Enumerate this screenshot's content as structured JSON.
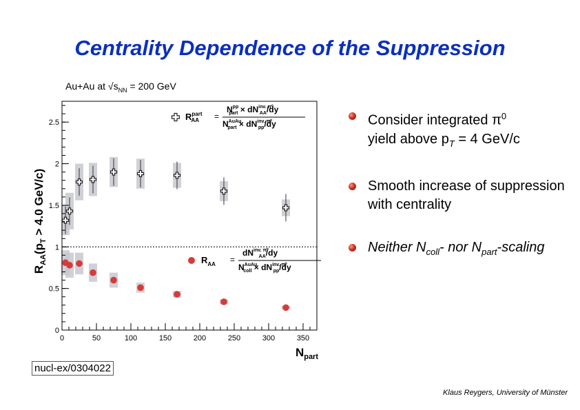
{
  "slide": {
    "title": "Centrality Dependence of the Suppression",
    "subtitle_prefix": "Au+Au at √s",
    "subtitle_sub": "NN",
    "subtitle_suffix": " = 200 GeV",
    "reference": "nucl-ex/0304022",
    "author": "Klaus Reygers, University of Münster",
    "bullets": [
      {
        "parts": [
          "Consider integrated π",
          "0",
          "yield above p",
          "T",
          " = 4 GeV/c"
        ]
      },
      {
        "parts": [
          "Smooth increase of suppression with centrality"
        ]
      },
      {
        "parts": [
          "Neither N",
          "coll",
          "- nor N",
          "part",
          "-scaling"
        ]
      }
    ],
    "colors": {
      "title": "#0a2fbe",
      "ncoll_markers": "#d83a3a",
      "npart_markers": "#ffffff",
      "syst_band": "#c8c8d0",
      "bullet": "#c82818"
    }
  },
  "chart_data": {
    "type": "scatter",
    "xlabel": "N",
    "xlabel_sub": "part",
    "ylabel": "R",
    "ylabel_sub": "AA",
    "ylabel_paren": "(p",
    "ylabel_paren_sub": "T",
    "ylabel_rest": " > 4.0 GeV/c)",
    "xlim": [
      0,
      370
    ],
    "ylim": [
      0,
      2.75
    ],
    "x_ticks": [
      0,
      50,
      100,
      150,
      200,
      250,
      300,
      350
    ],
    "y_ticks": [
      0,
      0.5,
      1,
      1.5,
      2,
      2.5
    ],
    "reference_line": 1,
    "series": [
      {
        "marker": "open-cross",
        "formula": {
          "lhs": "R",
          "lhs_sup": "part",
          "lhs_sub": "AA",
          "num": "N",
          "num_sup": "pp",
          "num_sub": "part",
          "num_mid": " × dN",
          "num_mid_sup": "inv. π⁰",
          "num_mid_sub": "AA",
          "num_end": "/dy",
          "den": "N",
          "den_sup": "AuAu",
          "den_sub": "part",
          "den_mid": " × dN",
          "den_mid_sup": "inv. π⁰",
          "den_mid_sub": "pp",
          "den_end": "/dy"
        },
        "x": [
          5,
          11,
          25,
          45,
          75,
          114,
          167,
          235,
          325
        ],
        "y": [
          1.32,
          1.43,
          1.78,
          1.81,
          1.9,
          1.88,
          1.86,
          1.67,
          1.47
        ],
        "syst": [
          0.18,
          0.22,
          0.22,
          0.2,
          0.18,
          0.18,
          0.15,
          0.12,
          0.1
        ]
      },
      {
        "marker": "filled-circle",
        "formula": {
          "lhs": "R",
          "lhs_sub": "AA",
          "num": "dN",
          "num_sup": "inv. π⁰",
          "num_sub": "AA",
          "num_end": "/dy",
          "den": "N",
          "den_sup": "AuAu",
          "den_sub": "coll",
          "den_mid": " × dN",
          "den_mid_sup": "inv. π⁰",
          "den_mid_sub": "pp",
          "den_end": "/dy"
        },
        "x": [
          5,
          11,
          25,
          45,
          75,
          114,
          167,
          235,
          325
        ],
        "y": [
          0.81,
          0.78,
          0.8,
          0.69,
          0.6,
          0.51,
          0.43,
          0.34,
          0.27
        ],
        "syst": [
          0.15,
          0.15,
          0.13,
          0.11,
          0.09,
          0.06,
          0.04,
          0.03,
          0.02
        ]
      }
    ]
  }
}
